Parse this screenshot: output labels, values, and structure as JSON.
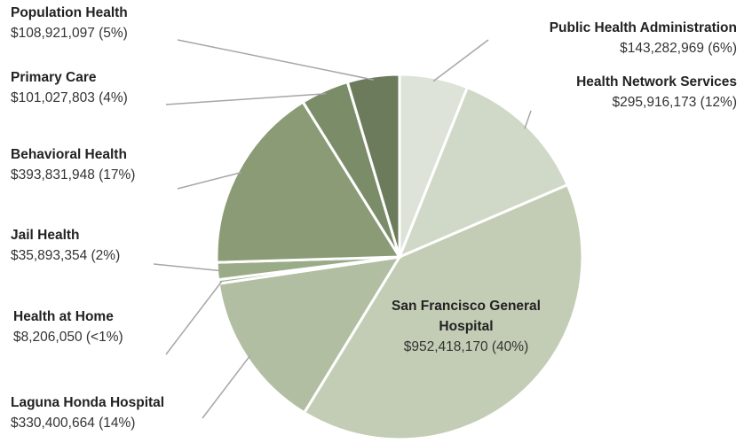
{
  "chart_data": {
    "type": "pie",
    "categories": [
      "Public Health Administration",
      "Health Network Services",
      "San Francisco General Hospital",
      "Laguna Honda Hospital",
      "Health at Home",
      "Jail Health",
      "Behavioral Health",
      "Primary Care",
      "Population Health"
    ],
    "values": [
      143282969,
      295916173,
      952418170,
      330400664,
      8206050,
      35893354,
      393831948,
      101027803,
      108921097
    ],
    "value_labels": [
      "$143,282,969 (6%)",
      "$295,916,173 (12%)",
      "$952,418,170 (40%)",
      "$330,400,664 (14%)",
      "$8,206,050 (<1%)",
      "$35,893,354 (2%)",
      "$393,831,948 (17%)",
      "$101,027,803 (4%)",
      "$108,921,097 (5%)"
    ],
    "colors": [
      "#dde3d8",
      "#d0d8c7",
      "#c3cdb5",
      "#b1bea1",
      "#a5b492",
      "#9aab87",
      "#8a9b76",
      "#7b8c68",
      "#6b7b5b"
    ]
  }
}
